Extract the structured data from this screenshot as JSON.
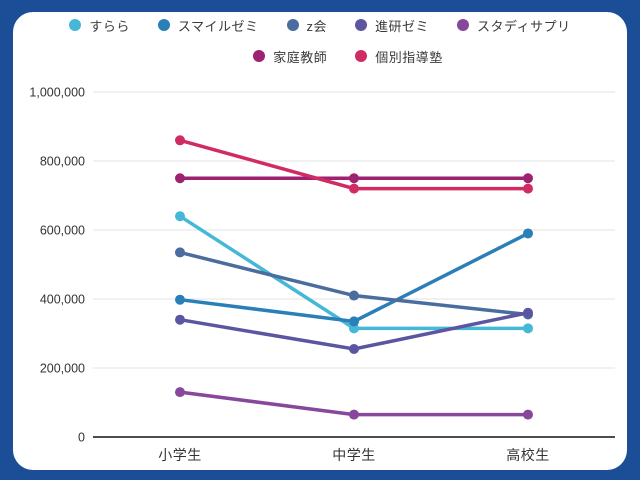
{
  "frame": {
    "background_color": "#ffffff",
    "border_color": "#1b4e96"
  },
  "chart_data": {
    "type": "line",
    "categories": [
      "小学生",
      "中学生",
      "高校生"
    ],
    "series": [
      {
        "name": "すらら",
        "color": "#45b8d8",
        "values": [
          640000,
          315000,
          315000
        ]
      },
      {
        "name": "スマイルゼミ",
        "color": "#2b7fb8",
        "values": [
          398000,
          335000,
          590000
        ]
      },
      {
        "name": "z会",
        "color": "#4a6d9e",
        "values": [
          535000,
          410000,
          355000
        ]
      },
      {
        "name": "進研ゼミ",
        "color": "#5b55a2",
        "values": [
          340000,
          255000,
          360000
        ]
      },
      {
        "name": "スタディサプリ",
        "color": "#87489b",
        "values": [
          130000,
          65000,
          65000
        ]
      },
      {
        "name": "家庭教師",
        "color": "#9e2272",
        "values": [
          750000,
          750000,
          750000
        ]
      },
      {
        "name": "個別指導塾",
        "color": "#d12b63",
        "values": [
          860000,
          720000,
          720000
        ]
      }
    ],
    "title": "",
    "xlabel": "",
    "ylabel": "",
    "ylim": [
      0,
      1000000
    ],
    "ytick_step": 200000,
    "ytick_labels": [
      "0",
      "200,000",
      "400,000",
      "600,000",
      "800,000",
      "1,000,000"
    ],
    "grid": true,
    "legend": {
      "position": "top",
      "rows": [
        [
          0,
          1,
          2,
          3,
          4
        ],
        [
          5,
          6
        ]
      ]
    }
  }
}
